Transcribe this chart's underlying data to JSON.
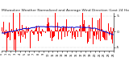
{
  "title": "Milwaukee Weather Normalized and Average Wind Direction (Last 24 Hours)",
  "background_color": "#ffffff",
  "plot_bg_color": "#ffffff",
  "grid_color": "#aaaaaa",
  "ylim": [
    -6,
    6
  ],
  "yticks": [
    -5,
    0,
    5
  ],
  "ytick_labels": [
    "-5",
    " 0",
    " 5"
  ],
  "n_points": 288,
  "red_color": "#ff0000",
  "blue_color": "#0000cc",
  "title_fontsize": 3.2,
  "tick_fontsize": 3.0,
  "figsize": [
    1.6,
    0.87
  ],
  "dpi": 100
}
